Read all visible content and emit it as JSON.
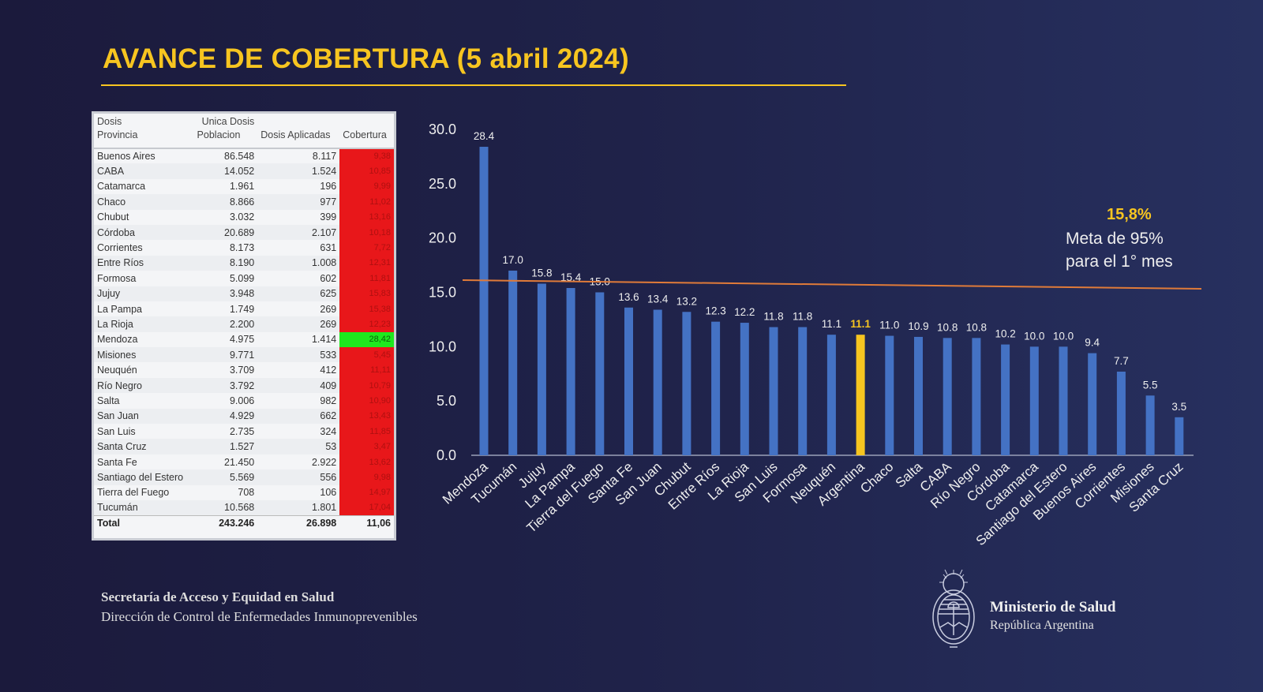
{
  "title": "AVANCE DE COBERTURA (5 abril 2024)",
  "table": {
    "header_row1": [
      "Dosis",
      "Unica Dosis",
      "",
      ""
    ],
    "header_row2": [
      "Provincia",
      "Poblacion",
      "Dosis Aplicadas",
      "Cobertura"
    ],
    "rows": [
      [
        "Buenos Aires",
        "86.548",
        "8.117",
        "9,38"
      ],
      [
        "CABA",
        "14.052",
        "1.524",
        "10,85"
      ],
      [
        "Catamarca",
        "1.961",
        "196",
        "9,99"
      ],
      [
        "Chaco",
        "8.866",
        "977",
        "11,02"
      ],
      [
        "Chubut",
        "3.032",
        "399",
        "13,16"
      ],
      [
        "Córdoba",
        "20.689",
        "2.107",
        "10,18"
      ],
      [
        "Corrientes",
        "8.173",
        "631",
        "7,72"
      ],
      [
        "Entre Ríos",
        "8.190",
        "1.008",
        "12,31"
      ],
      [
        "Formosa",
        "5.099",
        "602",
        "11,81"
      ],
      [
        "Jujuy",
        "3.948",
        "625",
        "15,83"
      ],
      [
        "La Pampa",
        "1.749",
        "269",
        "15,38"
      ],
      [
        "La Rioja",
        "2.200",
        "269",
        "12,23"
      ],
      [
        "Mendoza",
        "4.975",
        "1.414",
        "28,42"
      ],
      [
        "Misiones",
        "9.771",
        "533",
        "5,45"
      ],
      [
        "Neuquén",
        "3.709",
        "412",
        "11,11"
      ],
      [
        "Río Negro",
        "3.792",
        "409",
        "10,79"
      ],
      [
        "Salta",
        "9.006",
        "982",
        "10,90"
      ],
      [
        "San Juan",
        "4.929",
        "662",
        "13,43"
      ],
      [
        "San Luis",
        "2.735",
        "324",
        "11,85"
      ],
      [
        "Santa Cruz",
        "1.527",
        "53",
        "3,47"
      ],
      [
        "Santa Fe",
        "21.450",
        "2.922",
        "13,62"
      ],
      [
        "Santiago del Estero",
        "5.569",
        "556",
        "9,98"
      ],
      [
        "Tierra del Fuego",
        "708",
        "106",
        "14,97"
      ],
      [
        "Tucumán",
        "10.568",
        "1.801",
        "17,04"
      ]
    ],
    "total": [
      "Total",
      "243.246",
      "26.898",
      "11,06"
    ],
    "colors": {
      "below_target": "#e8171a",
      "above_target": "#1ee81e"
    }
  },
  "chart_data": {
    "type": "bar",
    "categories": [
      "Mendoza",
      "Tucumán",
      "Jujuy",
      "La Pampa",
      "Tierra del Fuego",
      "Santa Fe",
      "San Juan",
      "Chubut",
      "Entre Ríos",
      "La Rioja",
      "San Luis",
      "Formosa",
      "Neuquén",
      "Argentina",
      "Chaco",
      "Salta",
      "CABA",
      "Río Negro",
      "Córdoba",
      "Catamarca",
      "Santiago del Estero",
      "Buenos Aires",
      "Corrientes",
      "Misiones",
      "Santa Cruz"
    ],
    "values": [
      28.4,
      17.0,
      15.8,
      15.4,
      15.0,
      13.6,
      13.4,
      13.2,
      12.3,
      12.2,
      11.8,
      11.8,
      11.1,
      11.1,
      11.0,
      10.9,
      10.8,
      10.8,
      10.2,
      10.0,
      10.0,
      9.4,
      7.7,
      5.5,
      3.5
    ],
    "ylim": [
      0,
      30
    ],
    "yticks": [
      "0.0",
      "5.0",
      "10.0",
      "15.0",
      "20.0",
      "25.0",
      "30.0"
    ],
    "highlight": "Argentina",
    "colors": {
      "bar": "#4472c4",
      "highlight": "#f7c520",
      "target_line": "#e07b39"
    },
    "target_value": 15.8,
    "target_label": "15,8%",
    "target_text": [
      "Meta de 95%",
      "para el 1° mes"
    ],
    "grid": false
  },
  "footer": {
    "line1": "Secretaría de Acceso y Equidad en Salud",
    "line2": "Dirección de Control de Enfermedades Inmunoprevenibles"
  },
  "ministry": {
    "name": "Ministerio de Salud",
    "country": "República Argentina"
  }
}
